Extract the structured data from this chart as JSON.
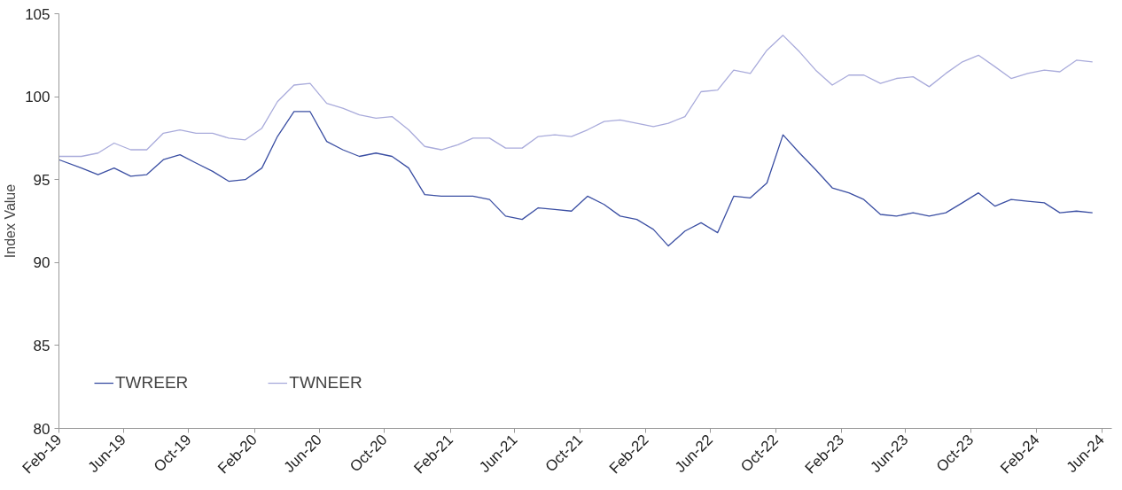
{
  "chart_data": {
    "type": "line",
    "ylabel": "Index Value",
    "x": [
      "2019-02-01",
      "2019-03-15",
      "2019-04-15",
      "2019-05-15",
      "2019-06-15",
      "2019-07-15",
      "2019-08-15",
      "2019-09-15",
      "2019-10-15",
      "2019-11-15",
      "2019-12-15",
      "2020-01-15",
      "2020-02-15",
      "2020-03-15",
      "2020-04-15",
      "2020-05-15",
      "2020-06-15",
      "2020-07-15",
      "2020-08-15",
      "2020-09-15",
      "2020-10-15",
      "2020-11-15",
      "2020-12-15",
      "2021-01-15",
      "2021-02-15",
      "2021-03-15",
      "2021-04-15",
      "2021-05-15",
      "2021-06-15",
      "2021-07-15",
      "2021-08-15",
      "2021-09-15",
      "2021-10-15",
      "2021-11-15",
      "2021-12-15",
      "2022-01-15",
      "2022-02-15",
      "2022-03-15",
      "2022-04-15",
      "2022-05-15",
      "2022-06-15",
      "2022-07-15",
      "2022-08-15",
      "2022-09-15",
      "2022-10-15",
      "2022-11-15",
      "2022-12-15",
      "2023-01-15",
      "2023-02-15",
      "2023-03-15",
      "2023-04-15",
      "2023-05-15",
      "2023-06-15",
      "2023-07-15",
      "2023-08-15",
      "2023-09-15",
      "2023-10-15",
      "2023-11-15",
      "2023-12-15",
      "2024-01-15",
      "2024-02-15",
      "2024-03-15",
      "2024-04-15",
      "2024-05-15"
    ],
    "series": [
      {
        "name": "TWREER",
        "color": "#3b4fa3",
        "values": [
          96.2,
          95.7,
          95.3,
          95.7,
          95.2,
          95.3,
          96.2,
          96.5,
          96.0,
          95.5,
          94.9,
          95.0,
          95.7,
          97.6,
          99.1,
          99.1,
          97.3,
          96.8,
          96.4,
          96.6,
          96.4,
          95.7,
          94.1,
          94.0,
          94.0,
          94.0,
          93.8,
          92.8,
          92.6,
          93.3,
          93.2,
          93.1,
          94.0,
          93.5,
          92.8,
          92.6,
          92.0,
          91.0,
          91.9,
          92.4,
          91.8,
          94.0,
          93.9,
          94.8,
          97.7,
          96.6,
          95.6,
          94.5,
          94.2,
          93.8,
          92.9,
          92.8,
          93.0,
          92.8,
          93.0,
          93.6,
          94.2,
          93.4,
          93.8,
          93.7,
          93.6,
          93.0,
          93.1,
          93.0
        ]
      },
      {
        "name": "TWNEER",
        "color": "#a9abdb",
        "values": [
          96.4,
          96.4,
          96.6,
          97.2,
          96.8,
          96.8,
          97.8,
          98.0,
          97.8,
          97.8,
          97.5,
          97.4,
          98.1,
          99.7,
          100.7,
          100.8,
          99.6,
          99.3,
          98.9,
          98.7,
          98.8,
          98.0,
          97.0,
          96.8,
          97.1,
          97.5,
          97.5,
          96.9,
          96.9,
          97.6,
          97.7,
          97.6,
          98.0,
          98.5,
          98.6,
          98.4,
          98.2,
          98.4,
          98.8,
          100.3,
          100.4,
          101.6,
          101.4,
          102.8,
          103.7,
          102.7,
          101.6,
          100.7,
          101.3,
          101.3,
          100.8,
          101.1,
          101.2,
          100.6,
          101.4,
          102.1,
          102.5,
          101.8,
          101.1,
          101.4,
          101.6,
          101.5,
          102.2,
          102.1
        ]
      }
    ],
    "xlim": [
      "2019-02-01",
      "2024-06-20"
    ],
    "xticks": [
      {
        "value": "2019-02-01",
        "label": "Feb-19"
      },
      {
        "value": "2019-06-01",
        "label": "Jun-19"
      },
      {
        "value": "2019-10-01",
        "label": "Oct-19"
      },
      {
        "value": "2020-02-01",
        "label": "Feb-20"
      },
      {
        "value": "2020-06-01",
        "label": "Jun-20"
      },
      {
        "value": "2020-10-01",
        "label": "Oct-20"
      },
      {
        "value": "2021-02-01",
        "label": "Feb-21"
      },
      {
        "value": "2021-06-01",
        "label": "Jun-21"
      },
      {
        "value": "2021-10-01",
        "label": "Oct-21"
      },
      {
        "value": "2022-02-01",
        "label": "Feb-22"
      },
      {
        "value": "2022-06-01",
        "label": "Jun-22"
      },
      {
        "value": "2022-10-01",
        "label": "Oct-22"
      },
      {
        "value": "2023-02-01",
        "label": "Feb-23"
      },
      {
        "value": "2023-06-01",
        "label": "Jun-23"
      },
      {
        "value": "2023-10-01",
        "label": "Oct-23"
      },
      {
        "value": "2024-02-01",
        "label": "Feb-24"
      },
      {
        "value": "2024-06-01",
        "label": "Jun-24"
      }
    ],
    "ylim": [
      80,
      105
    ],
    "yticks": [
      80,
      85,
      90,
      95,
      100,
      105
    ],
    "grid": false,
    "legend": "bottom left",
    "marker": "none",
    "line_style": "solid"
  }
}
